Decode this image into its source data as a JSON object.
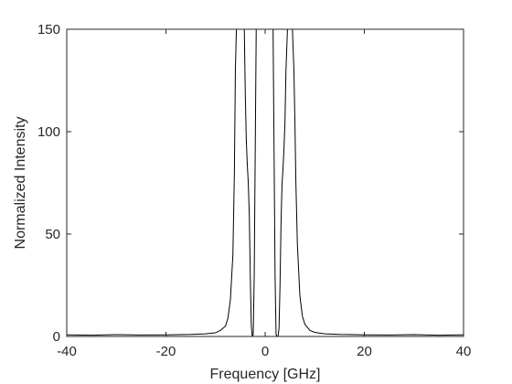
{
  "chart_data": {
    "type": "line",
    "title": "",
    "xlabel": "Frequency [GHz]",
    "ylabel": "Normalized Intensity",
    "xlim": [
      -40,
      40
    ],
    "ylim": [
      0,
      150
    ],
    "xticks": [
      -40,
      -20,
      0,
      20,
      40
    ],
    "yticks": [
      0,
      50,
      100,
      150
    ],
    "xtick_labels": [
      "-40",
      "-20",
      "0",
      "20",
      "40"
    ],
    "ytick_labels": [
      "0",
      "50",
      "100",
      "150"
    ],
    "grid": false,
    "legend": "none",
    "line_color": "#000000",
    "series": [
      {
        "x": [
          -40,
          -35,
          -30,
          -25,
          -20,
          -15,
          -12,
          -10,
          -9,
          -8,
          -7.5,
          -7,
          -6.5,
          -6.2,
          -6.0,
          -5.8,
          -5.5,
          -5.2,
          -5.0,
          -4.8,
          -4.5,
          -4.2,
          -4.0,
          -3.8,
          -3.6,
          -3.4,
          -3.2,
          -3.0,
          -2.8,
          -2.6,
          -2.4,
          -2.2,
          -2.0,
          -1.8,
          -1.6,
          -1.4,
          -1.2,
          -1.0,
          -0.8,
          -0.6,
          -0.4,
          -0.2,
          0.0,
          0.2,
          0.4,
          0.6,
          0.8,
          1.0,
          1.2,
          1.4,
          1.6,
          1.8,
          2.0,
          2.2,
          2.4,
          2.6,
          2.8,
          3.0,
          3.2,
          3.4,
          3.6,
          3.8,
          4.0,
          4.2,
          4.5,
          4.8,
          5.0,
          5.2,
          5.5,
          5.8,
          6.0,
          6.2,
          6.5,
          7,
          7.5,
          8,
          9,
          10,
          12,
          15,
          20,
          25,
          30,
          35,
          40
        ],
        "y": [
          0.8,
          0.6,
          0.9,
          0.7,
          0.8,
          1.0,
          1.3,
          1.8,
          3,
          5,
          9,
          18,
          40,
          80,
          130,
          150,
          150,
          150,
          150,
          150,
          150,
          150,
          118,
          96,
          84,
          75,
          60,
          30,
          6,
          0,
          1,
          30,
          90,
          150,
          150,
          150,
          150,
          150,
          150,
          150,
          150,
          150,
          150,
          150,
          150,
          150,
          150,
          150,
          150,
          150,
          150,
          90,
          30,
          1,
          0,
          0,
          4,
          25,
          55,
          74,
          82,
          92,
          105,
          130,
          150,
          150,
          150,
          150,
          150,
          130,
          105,
          75,
          45,
          20,
          10,
          6,
          3,
          2,
          1.3,
          1.0,
          0.8,
          0.7,
          0.9,
          0.6,
          0.8
        ]
      }
    ]
  }
}
